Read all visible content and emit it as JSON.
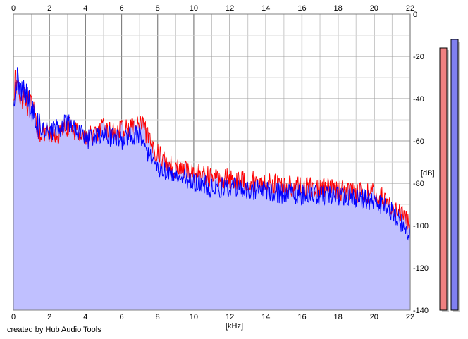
{
  "footer": {
    "credit": "created by Hub Audio Tools"
  },
  "chart_data": {
    "type": "line",
    "title": "",
    "xlabel": "[kHz]",
    "ylabel": "[dB]",
    "xlim": [
      0,
      22
    ],
    "ylim": [
      -140,
      0
    ],
    "x_ticks": [
      "0",
      "2",
      "4",
      "6",
      "8",
      "10",
      "12",
      "14",
      "16",
      "18",
      "20",
      "22"
    ],
    "y_ticks": [
      "0",
      "-20",
      "-40",
      "-60",
      "-80",
      "-100",
      "-120",
      "-140"
    ],
    "grid": true,
    "fill_color": "#c0c0ff",
    "series": [
      {
        "color": "#ff0000",
        "x": [
          0,
          0.2,
          0.4,
          0.6,
          0.8,
          1.0,
          1.2,
          1.5,
          2.0,
          2.5,
          3.0,
          3.5,
          4.0,
          4.5,
          5.0,
          5.5,
          6.0,
          6.5,
          7.0,
          7.3,
          7.6,
          8.0,
          8.5,
          9.0,
          9.5,
          10.0,
          11.0,
          12.0,
          13.0,
          14.0,
          15.0,
          16.0,
          17.0,
          18.0,
          19.0,
          20.0,
          20.5,
          21.0,
          21.5,
          22.0
        ],
        "y": [
          -35,
          -32,
          -40,
          -36,
          -42,
          -45,
          -50,
          -55,
          -58,
          -57,
          -53,
          -55,
          -58,
          -57,
          -54,
          -56,
          -55,
          -54,
          -52,
          -55,
          -62,
          -66,
          -70,
          -73,
          -74,
          -75,
          -77,
          -78,
          -79,
          -80,
          -81,
          -82,
          -82,
          -83,
          -84,
          -85,
          -87,
          -91,
          -95,
          -99
        ]
      },
      {
        "color": "#0000ff",
        "x": [
          0,
          0.2,
          0.4,
          0.6,
          0.8,
          1.0,
          1.2,
          1.5,
          2.0,
          2.5,
          3.0,
          3.5,
          4.0,
          4.5,
          5.0,
          5.5,
          6.0,
          6.5,
          7.0,
          7.3,
          7.6,
          8.0,
          8.5,
          9.0,
          9.5,
          10.0,
          11.0,
          12.0,
          13.0,
          14.0,
          15.0,
          16.0,
          17.0,
          18.0,
          19.0,
          20.0,
          20.5,
          21.0,
          21.5,
          22.0
        ],
        "y": [
          -40,
          -30,
          -38,
          -35,
          -40,
          -44,
          -52,
          -54,
          -56,
          -54,
          -50,
          -54,
          -59,
          -58,
          -57,
          -58,
          -60,
          -58,
          -57,
          -62,
          -68,
          -72,
          -74,
          -76,
          -77,
          -80,
          -82,
          -82,
          -83,
          -84,
          -85,
          -85,
          -86,
          -86,
          -87,
          -88,
          -90,
          -94,
          -99,
          -104
        ]
      }
    ],
    "level_meters": [
      {
        "color": "#f08080",
        "value_db": -16
      },
      {
        "color": "#8080f0",
        "value_db": -12
      }
    ]
  }
}
